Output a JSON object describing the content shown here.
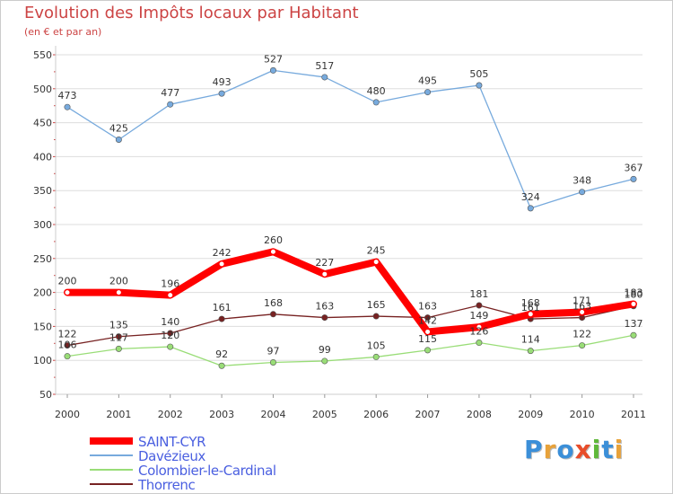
{
  "title": "Evolution des Impôts locaux par Habitant",
  "subtitle": "(en € et par an)",
  "logo": {
    "text": "Proxiti",
    "colors": [
      "#3b8fd8",
      "#e8a23a",
      "#3b8fd8",
      "#e84d2a",
      "#5fb83a",
      "#3b8fd8",
      "#e8a23a"
    ]
  },
  "chart_data": {
    "type": "line",
    "x": [
      "2000",
      "2001",
      "2002",
      "2003",
      "2004",
      "2005",
      "2006",
      "2007",
      "2008",
      "2009",
      "2010",
      "2011"
    ],
    "ylim": [
      50,
      550
    ],
    "yticks": [
      "50",
      "100",
      "150",
      "200",
      "250",
      "300",
      "350",
      "400",
      "450",
      "500",
      "550"
    ],
    "grid": "horizontal",
    "legend_position": "bottom-left",
    "series": [
      {
        "name": "SAINT-CYR",
        "color": "#ff0000",
        "values": [
          200,
          200,
          196,
          242,
          260,
          227,
          245,
          142,
          149,
          168,
          171,
          183
        ],
        "labels": [
          "200",
          "200",
          "196",
          "242",
          "260",
          "227",
          "245",
          "142",
          "149",
          "168",
          "171",
          "183"
        ]
      },
      {
        "name": "Davézieux",
        "color": "#77aadd",
        "values": [
          473,
          425,
          477,
          493,
          527,
          517,
          480,
          495,
          505,
          324,
          348,
          367
        ],
        "labels": [
          "473",
          "425",
          "477",
          "493",
          "527",
          "517",
          "480",
          "495",
          "505",
          "324",
          "348",
          "367"
        ]
      },
      {
        "name": "Colombier-le-Cardinal",
        "color": "#99dd77",
        "values": [
          106,
          117,
          120,
          92,
          97,
          99,
          105,
          115,
          126,
          114,
          122,
          137
        ],
        "labels": [
          "106",
          "117",
          "120",
          "92",
          "97",
          "99",
          "105",
          "115",
          "126",
          "114",
          "122",
          "137"
        ]
      },
      {
        "name": "Thorrenc",
        "color": "#772222",
        "values": [
          122,
          135,
          140,
          161,
          168,
          163,
          165,
          163,
          181,
          161,
          163,
          180
        ],
        "labels": [
          "122",
          "135",
          "140",
          "161",
          "168",
          "163",
          "165",
          "163",
          "181",
          "161",
          "163",
          "180"
        ]
      }
    ]
  }
}
